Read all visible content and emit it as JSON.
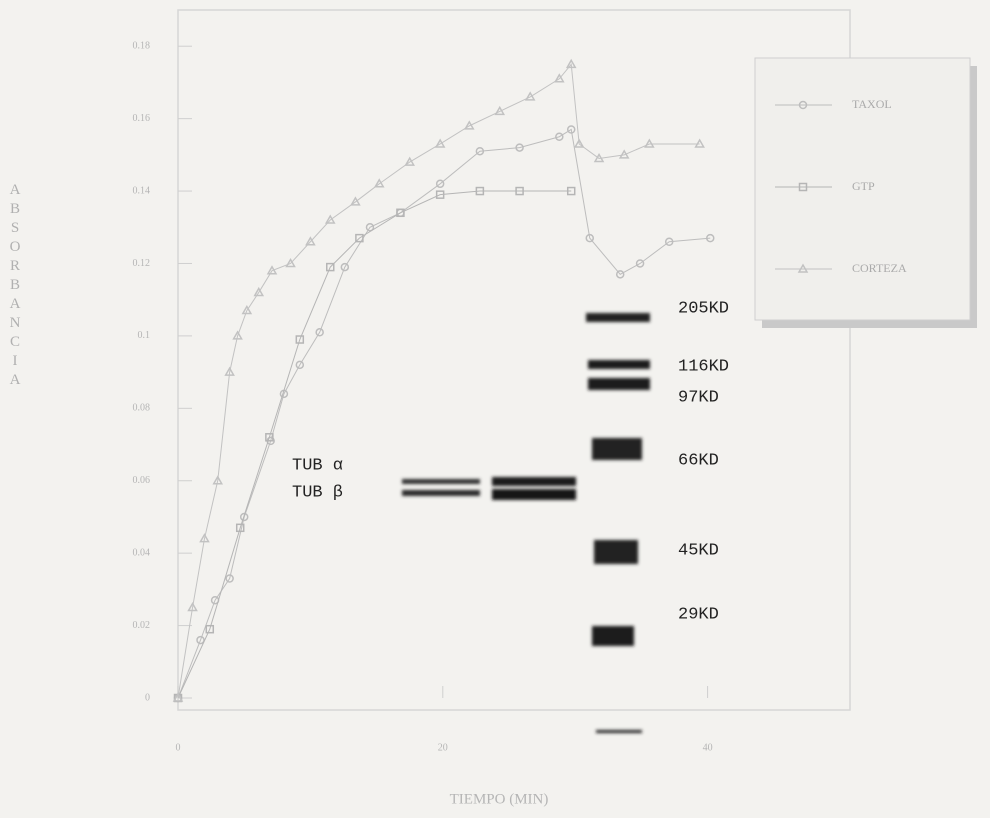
{
  "chart_data": {
    "type": "line",
    "x_label": "TIEMPO (MIN)",
    "y_label": "ABSORBANCIA",
    "xlim": [
      0,
      50
    ],
    "xticks": [
      0,
      20,
      40
    ],
    "ylim": [
      0,
      0.19
    ],
    "yticks": [
      0,
      0.02,
      0.04,
      0.06,
      0.08,
      0.1,
      0.12,
      0.14,
      0.16,
      0.18
    ],
    "series": [
      {
        "name": "TAXOL",
        "color": "#bdbdbd",
        "marker": "circle",
        "x": [
          0,
          1.7,
          2.8,
          3.9,
          5,
          7,
          8,
          9.2,
          10.7,
          12.6,
          14.5,
          16.8,
          19.8,
          22.8,
          25.8,
          28.8,
          29.7,
          31.1,
          33.4,
          34.9,
          37.1,
          40.2
        ],
        "values": [
          0,
          0.016,
          0.027,
          0.033,
          0.05,
          0.071,
          0.084,
          0.092,
          0.101,
          0.119,
          0.13,
          0.134,
          0.142,
          0.151,
          0.152,
          0.155,
          0.157,
          0.127,
          0.117,
          0.12,
          0.126,
          0.127
        ]
      },
      {
        "name": "GTP",
        "color": "#b5b5b5",
        "marker": "square",
        "x": [
          0,
          2.4,
          4.7,
          6.9,
          9.2,
          11.5,
          13.7,
          16.8,
          19.8,
          22.8,
          25.8,
          29.7
        ],
        "values": [
          0,
          0.019,
          0.047,
          0.072,
          0.099,
          0.119,
          0.127,
          0.134,
          0.139,
          0.14,
          0.14,
          0.14
        ]
      },
      {
        "name": "CORTEZA",
        "color": "#c2c2c2",
        "marker": "triangle",
        "x": [
          0,
          1.1,
          2,
          3,
          3.9,
          4.5,
          5.2,
          6.1,
          7.1,
          8.5,
          10,
          11.5,
          13.4,
          15.2,
          17.5,
          19.8,
          22,
          24.3,
          26.6,
          28.8,
          29.7,
          30.3,
          31.8,
          33.7,
          35.6,
          39.4
        ],
        "values": [
          0,
          0.025,
          0.044,
          0.06,
          0.09,
          0.1,
          0.107,
          0.112,
          0.118,
          0.12,
          0.126,
          0.132,
          0.137,
          0.142,
          0.148,
          0.153,
          0.158,
          0.162,
          0.166,
          0.171,
          0.175,
          0.153,
          0.149,
          0.15,
          0.153,
          0.153
        ]
      }
    ],
    "annotations": [
      "TUB α",
      "TUB β",
      "205KD",
      "116KD",
      "97KD",
      "66KD",
      "45KD",
      "29KD"
    ]
  }
}
